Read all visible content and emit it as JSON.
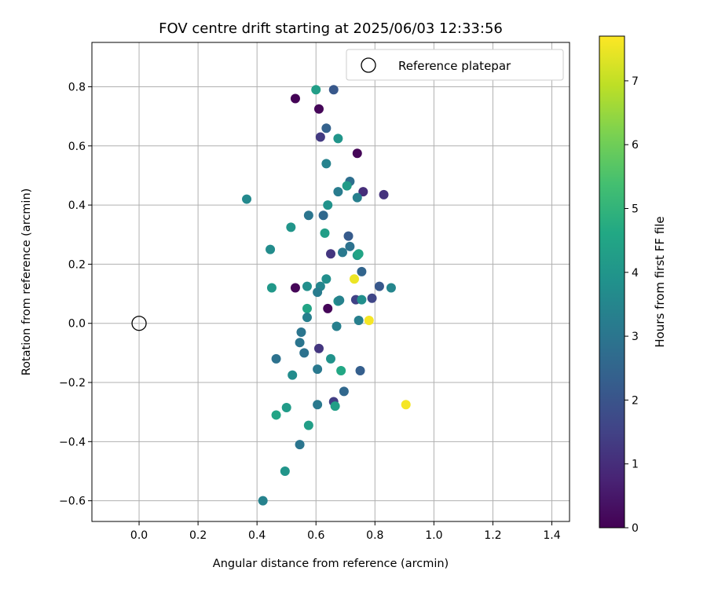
{
  "chart_data": {
    "type": "scatter",
    "title": "FOV centre drift starting at 2025/06/03 12:33:56",
    "xlabel": "Angular distance from reference (arcmin)",
    "ylabel": "Rotation from reference (arcmin)",
    "xlim": [
      -0.16,
      1.46
    ],
    "ylim": [
      -0.67,
      0.95
    ],
    "x_ticks": [
      "0.0",
      "0.2",
      "0.4",
      "0.6",
      "0.8",
      "1.0",
      "1.2",
      "1.4"
    ],
    "y_ticks": [
      "−0.6",
      "−0.4",
      "−0.2",
      "0.0",
      "0.2",
      "0.4",
      "0.6",
      "0.8"
    ],
    "grid": true,
    "legend": {
      "placement": "top-right",
      "entries": [
        {
          "label": "Reference platepar",
          "marker": "open-circle"
        }
      ]
    },
    "reference_point": {
      "x": 0.0,
      "y": 0.0
    },
    "colorbar": {
      "label": "Hours from first FF file",
      "range": [
        0,
        7.7
      ],
      "ticks": [
        "0",
        "1",
        "2",
        "3",
        "4",
        "5",
        "6",
        "7"
      ],
      "colormap": "viridis"
    },
    "points": [
      {
        "x": 0.53,
        "y": 0.76,
        "t": 0.05
      },
      {
        "x": 0.61,
        "y": 0.725,
        "t": 0.1
      },
      {
        "x": 0.66,
        "y": 0.79,
        "t": 2.1
      },
      {
        "x": 0.6,
        "y": 0.79,
        "t": 4.3
      },
      {
        "x": 0.635,
        "y": 0.66,
        "t": 2.4
      },
      {
        "x": 0.615,
        "y": 0.63,
        "t": 1.3
      },
      {
        "x": 0.675,
        "y": 0.625,
        "t": 4.0
      },
      {
        "x": 0.74,
        "y": 0.575,
        "t": 0.1
      },
      {
        "x": 0.635,
        "y": 0.54,
        "t": 3.4
      },
      {
        "x": 0.715,
        "y": 0.48,
        "t": 2.8
      },
      {
        "x": 0.705,
        "y": 0.465,
        "t": 4.2
      },
      {
        "x": 0.675,
        "y": 0.445,
        "t": 3.2
      },
      {
        "x": 0.76,
        "y": 0.445,
        "t": 1.0
      },
      {
        "x": 0.83,
        "y": 0.435,
        "t": 1.1
      },
      {
        "x": 0.365,
        "y": 0.42,
        "t": 3.6
      },
      {
        "x": 0.74,
        "y": 0.425,
        "t": 3.3
      },
      {
        "x": 0.64,
        "y": 0.4,
        "t": 3.9
      },
      {
        "x": 0.575,
        "y": 0.365,
        "t": 3.0
      },
      {
        "x": 0.625,
        "y": 0.365,
        "t": 2.6
      },
      {
        "x": 0.515,
        "y": 0.325,
        "t": 4.0
      },
      {
        "x": 0.63,
        "y": 0.305,
        "t": 4.3
      },
      {
        "x": 0.71,
        "y": 0.295,
        "t": 2.2
      },
      {
        "x": 0.445,
        "y": 0.25,
        "t": 3.7
      },
      {
        "x": 0.715,
        "y": 0.26,
        "t": 2.9
      },
      {
        "x": 0.69,
        "y": 0.24,
        "t": 3.1
      },
      {
        "x": 0.65,
        "y": 0.235,
        "t": 1.2
      },
      {
        "x": 0.74,
        "y": 0.23,
        "t": 4.2
      },
      {
        "x": 0.745,
        "y": 0.235,
        "t": 4.5
      },
      {
        "x": 0.755,
        "y": 0.175,
        "t": 2.5
      },
      {
        "x": 0.73,
        "y": 0.15,
        "t": 7.5
      },
      {
        "x": 0.635,
        "y": 0.15,
        "t": 3.8
      },
      {
        "x": 0.53,
        "y": 0.12,
        "t": 0.1
      },
      {
        "x": 0.45,
        "y": 0.12,
        "t": 4.1
      },
      {
        "x": 0.57,
        "y": 0.125,
        "t": 3.8
      },
      {
        "x": 0.615,
        "y": 0.125,
        "t": 3.5
      },
      {
        "x": 0.605,
        "y": 0.105,
        "t": 3.2
      },
      {
        "x": 0.815,
        "y": 0.125,
        "t": 2.1
      },
      {
        "x": 0.855,
        "y": 0.12,
        "t": 3.5
      },
      {
        "x": 0.675,
        "y": 0.075,
        "t": 3.9
      },
      {
        "x": 0.735,
        "y": 0.08,
        "t": 1.5
      },
      {
        "x": 0.755,
        "y": 0.08,
        "t": 3.8
      },
      {
        "x": 0.79,
        "y": 0.085,
        "t": 1.6
      },
      {
        "x": 0.68,
        "y": 0.078,
        "t": 3.4
      },
      {
        "x": 0.64,
        "y": 0.05,
        "t": 0.1
      },
      {
        "x": 0.57,
        "y": 0.05,
        "t": 4.5
      },
      {
        "x": 0.57,
        "y": 0.02,
        "t": 3.3
      },
      {
        "x": 0.745,
        "y": 0.01,
        "t": 3.3
      },
      {
        "x": 0.78,
        "y": 0.01,
        "t": 7.6
      },
      {
        "x": 0.67,
        "y": -0.01,
        "t": 3.3
      },
      {
        "x": 0.55,
        "y": -0.03,
        "t": 3.0
      },
      {
        "x": 0.545,
        "y": -0.065,
        "t": 3.0
      },
      {
        "x": 0.61,
        "y": -0.085,
        "t": 1.2
      },
      {
        "x": 0.56,
        "y": -0.1,
        "t": 2.9
      },
      {
        "x": 0.465,
        "y": -0.12,
        "t": 2.9
      },
      {
        "x": 0.65,
        "y": -0.12,
        "t": 3.9
      },
      {
        "x": 0.605,
        "y": -0.155,
        "t": 3.1
      },
      {
        "x": 0.685,
        "y": -0.16,
        "t": 4.6
      },
      {
        "x": 0.75,
        "y": -0.16,
        "t": 2.3
      },
      {
        "x": 0.52,
        "y": -0.175,
        "t": 3.7
      },
      {
        "x": 0.695,
        "y": -0.23,
        "t": 2.6
      },
      {
        "x": 0.905,
        "y": -0.275,
        "t": 7.6
      },
      {
        "x": 0.605,
        "y": -0.275,
        "t": 3.1
      },
      {
        "x": 0.66,
        "y": -0.265,
        "t": 1.4
      },
      {
        "x": 0.665,
        "y": -0.28,
        "t": 4.3
      },
      {
        "x": 0.5,
        "y": -0.285,
        "t": 4.2
      },
      {
        "x": 0.465,
        "y": -0.31,
        "t": 4.5
      },
      {
        "x": 0.575,
        "y": -0.345,
        "t": 4.3
      },
      {
        "x": 0.545,
        "y": -0.41,
        "t": 3.0
      },
      {
        "x": 0.495,
        "y": -0.5,
        "t": 4.0
      },
      {
        "x": 0.42,
        "y": -0.6,
        "t": 3.4
      }
    ]
  }
}
